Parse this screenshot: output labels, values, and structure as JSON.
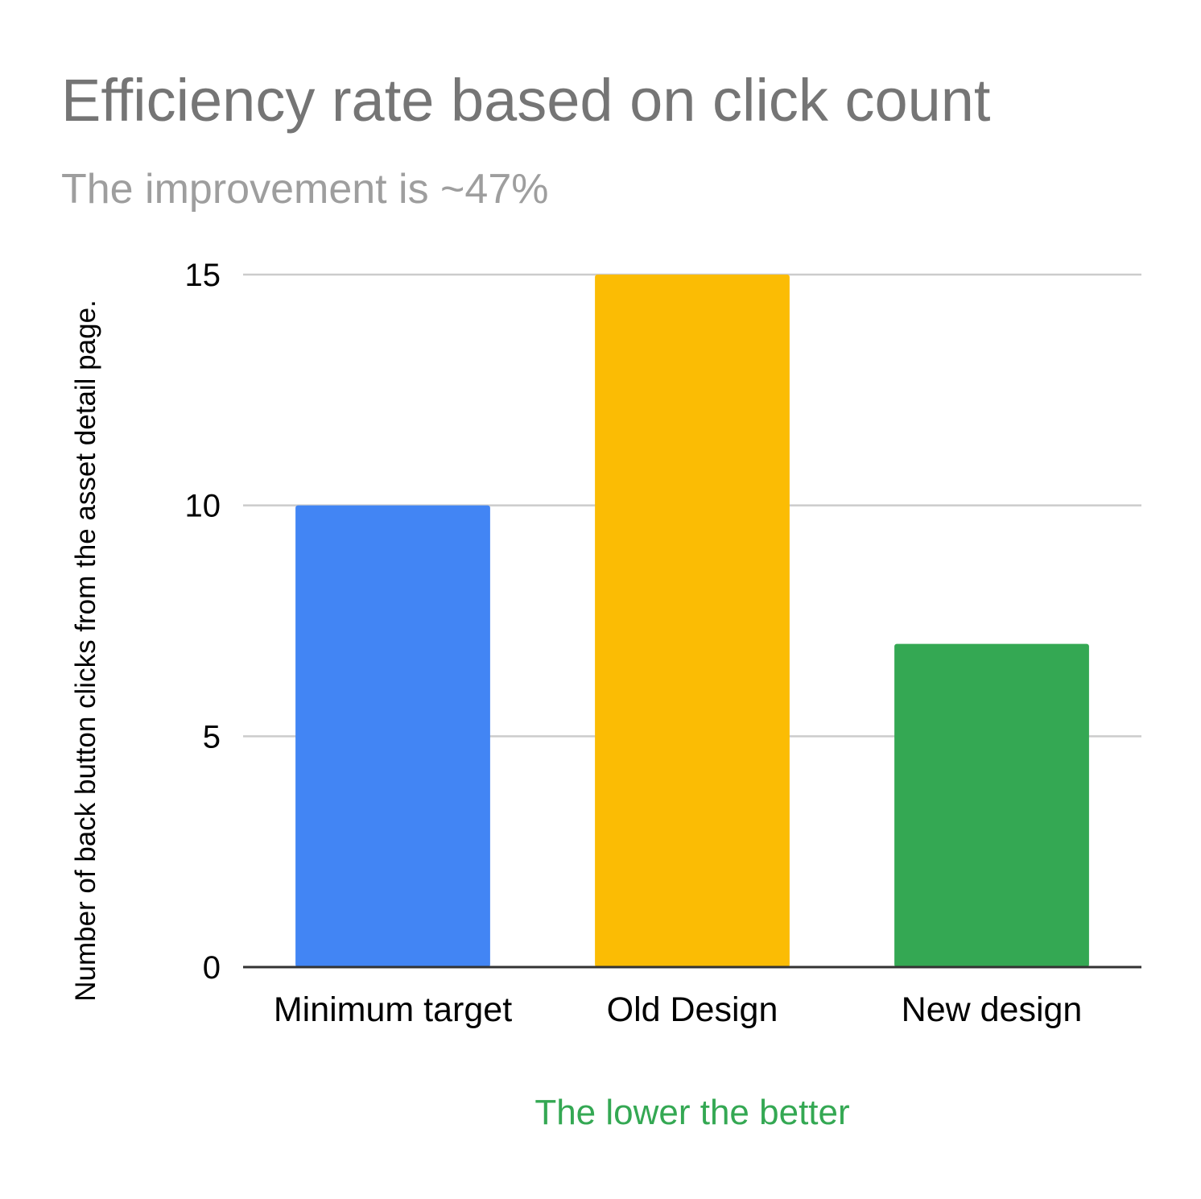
{
  "chart_data": {
    "type": "bar",
    "title": "Efficiency rate based on click count",
    "subtitle": "The improvement is ~47%",
    "xlabel": "The lower the better",
    "ylabel": "Number of back button clicks from the asset detail page.",
    "categories": [
      "Minimum target",
      "Old Design",
      "New design"
    ],
    "values": [
      10,
      15,
      7
    ],
    "bar_colors": [
      "#4285f4",
      "#fbbc04",
      "#34a853"
    ],
    "ylim": [
      0,
      15
    ],
    "yticks": [
      {
        "value": 0,
        "label": "0"
      },
      {
        "value": 5,
        "label": "5"
      },
      {
        "value": 10,
        "label": "10"
      },
      {
        "value": 15,
        "label": "15"
      }
    ],
    "grid": true,
    "legend": "none"
  },
  "colors": {
    "title": "#757575",
    "subtitle": "#9e9e9e",
    "xlabel": "#34a853",
    "axis_text": "#000000",
    "gridline": "#cccccc",
    "baseline": "#333333"
  }
}
